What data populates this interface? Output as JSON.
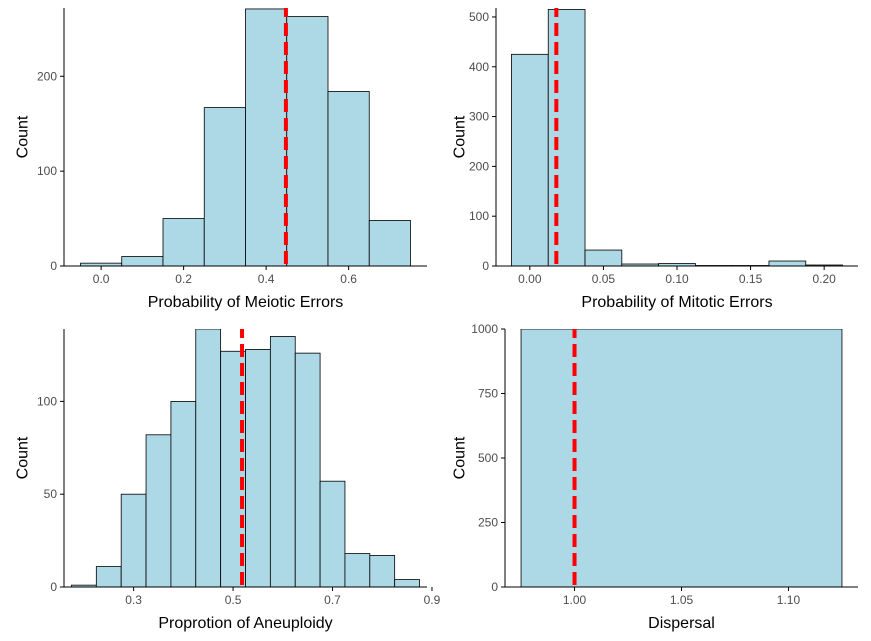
{
  "style": {
    "bar_fill": "#add8e6",
    "bar_stroke": "#000000",
    "mean_line_color": "#ff0000",
    "axis_color": "#000000",
    "tick_label_color": "#4d4d4d"
  },
  "chart_data": [
    {
      "type": "bar",
      "subtype": "histogram",
      "xlabel": "Probability of Meiotic Errors",
      "ylabel": "Count",
      "bins": [
        {
          "x0": -0.05,
          "x1": 0.05,
          "count": 3
        },
        {
          "x0": 0.05,
          "x1": 0.15,
          "count": 10
        },
        {
          "x0": 0.15,
          "x1": 0.25,
          "count": 50
        },
        {
          "x0": 0.25,
          "x1": 0.35,
          "count": 167
        },
        {
          "x0": 0.35,
          "x1": 0.45,
          "count": 271
        },
        {
          "x0": 0.45,
          "x1": 0.55,
          "count": 263
        },
        {
          "x0": 0.55,
          "x1": 0.65,
          "count": 184
        },
        {
          "x0": 0.65,
          "x1": 0.75,
          "count": 48
        }
      ],
      "mean_line": 0.448,
      "xlim": [
        -0.09,
        0.79
      ],
      "ylim": [
        0,
        272
      ],
      "xticks": [
        0.0,
        0.2,
        0.4,
        0.6
      ],
      "xtick_labels": [
        "0.0",
        "0.2",
        "0.4",
        "0.6"
      ],
      "yticks": [
        0,
        100,
        200
      ],
      "ytick_labels": [
        "0",
        "100",
        "200"
      ],
      "grid": false,
      "legend": "none"
    },
    {
      "type": "bar",
      "subtype": "histogram",
      "xlabel": "Probability of Mitotic Errors",
      "ylabel": "Count",
      "bins": [
        {
          "x0": -0.0125,
          "x1": 0.0125,
          "count": 425
        },
        {
          "x0": 0.0125,
          "x1": 0.0375,
          "count": 515
        },
        {
          "x0": 0.0375,
          "x1": 0.0625,
          "count": 32
        },
        {
          "x0": 0.0625,
          "x1": 0.0875,
          "count": 4
        },
        {
          "x0": 0.0875,
          "x1": 0.1125,
          "count": 5
        },
        {
          "x0": 0.1125,
          "x1": 0.1375,
          "count": 1
        },
        {
          "x0": 0.1375,
          "x1": 0.1625,
          "count": 1
        },
        {
          "x0": 0.1625,
          "x1": 0.1875,
          "count": 10
        },
        {
          "x0": 0.1875,
          "x1": 0.2125,
          "count": 2
        }
      ],
      "mean_line": 0.018,
      "xlim": [
        -0.023,
        0.223
      ],
      "ylim": [
        0,
        518
      ],
      "xticks": [
        0.0,
        0.05,
        0.1,
        0.15,
        0.2
      ],
      "xtick_labels": [
        "0.00",
        "0.05",
        "0.10",
        "0.15",
        "0.20"
      ],
      "yticks": [
        0,
        100,
        200,
        300,
        400,
        500
      ],
      "ytick_labels": [
        "0",
        "100",
        "200",
        "300",
        "400",
        "500"
      ],
      "grid": false,
      "legend": "none"
    },
    {
      "type": "bar",
      "subtype": "histogram",
      "xlabel": "Proprotion of Aneuploidy",
      "ylabel": "Count",
      "bins": [
        {
          "x0": 0.175,
          "x1": 0.225,
          "count": 1
        },
        {
          "x0": 0.225,
          "x1": 0.275,
          "count": 11
        },
        {
          "x0": 0.275,
          "x1": 0.325,
          "count": 50
        },
        {
          "x0": 0.325,
          "x1": 0.375,
          "count": 82
        },
        {
          "x0": 0.375,
          "x1": 0.425,
          "count": 100
        },
        {
          "x0": 0.425,
          "x1": 0.475,
          "count": 139
        },
        {
          "x0": 0.475,
          "x1": 0.525,
          "count": 127
        },
        {
          "x0": 0.525,
          "x1": 0.575,
          "count": 128
        },
        {
          "x0": 0.575,
          "x1": 0.625,
          "count": 135
        },
        {
          "x0": 0.625,
          "x1": 0.675,
          "count": 126
        },
        {
          "x0": 0.675,
          "x1": 0.725,
          "count": 57
        },
        {
          "x0": 0.725,
          "x1": 0.775,
          "count": 18
        },
        {
          "x0": 0.775,
          "x1": 0.825,
          "count": 17
        },
        {
          "x0": 0.825,
          "x1": 0.875,
          "count": 4
        }
      ],
      "mean_line": 0.518,
      "xlim": [
        0.16,
        0.89
      ],
      "ylim": [
        0,
        139
      ],
      "xticks": [
        0.3,
        0.5,
        0.7,
        0.9
      ],
      "xtick_labels": [
        "0.3",
        "0.5",
        "0.7",
        "0.9"
      ],
      "yticks": [
        0,
        50,
        100
      ],
      "ytick_labels": [
        "0",
        "50",
        "100"
      ],
      "grid": false,
      "legend": "none"
    },
    {
      "type": "bar",
      "subtype": "histogram",
      "xlabel": "Dispersal",
      "ylabel": "Count",
      "bins": [
        {
          "x0": 0.975,
          "x1": 1.125,
          "count": 1000
        }
      ],
      "mean_line": 1.0,
      "xlim": [
        0.9675,
        1.1325
      ],
      "ylim": [
        0,
        1000
      ],
      "xticks": [
        1.0,
        1.05,
        1.1
      ],
      "xtick_labels": [
        "1.00",
        "1.05",
        "1.10"
      ],
      "yticks": [
        0,
        250,
        500,
        750,
        1000
      ],
      "ytick_labels": [
        "0",
        "250",
        "500",
        "750",
        "1000"
      ],
      "grid": false,
      "legend": "none"
    }
  ]
}
